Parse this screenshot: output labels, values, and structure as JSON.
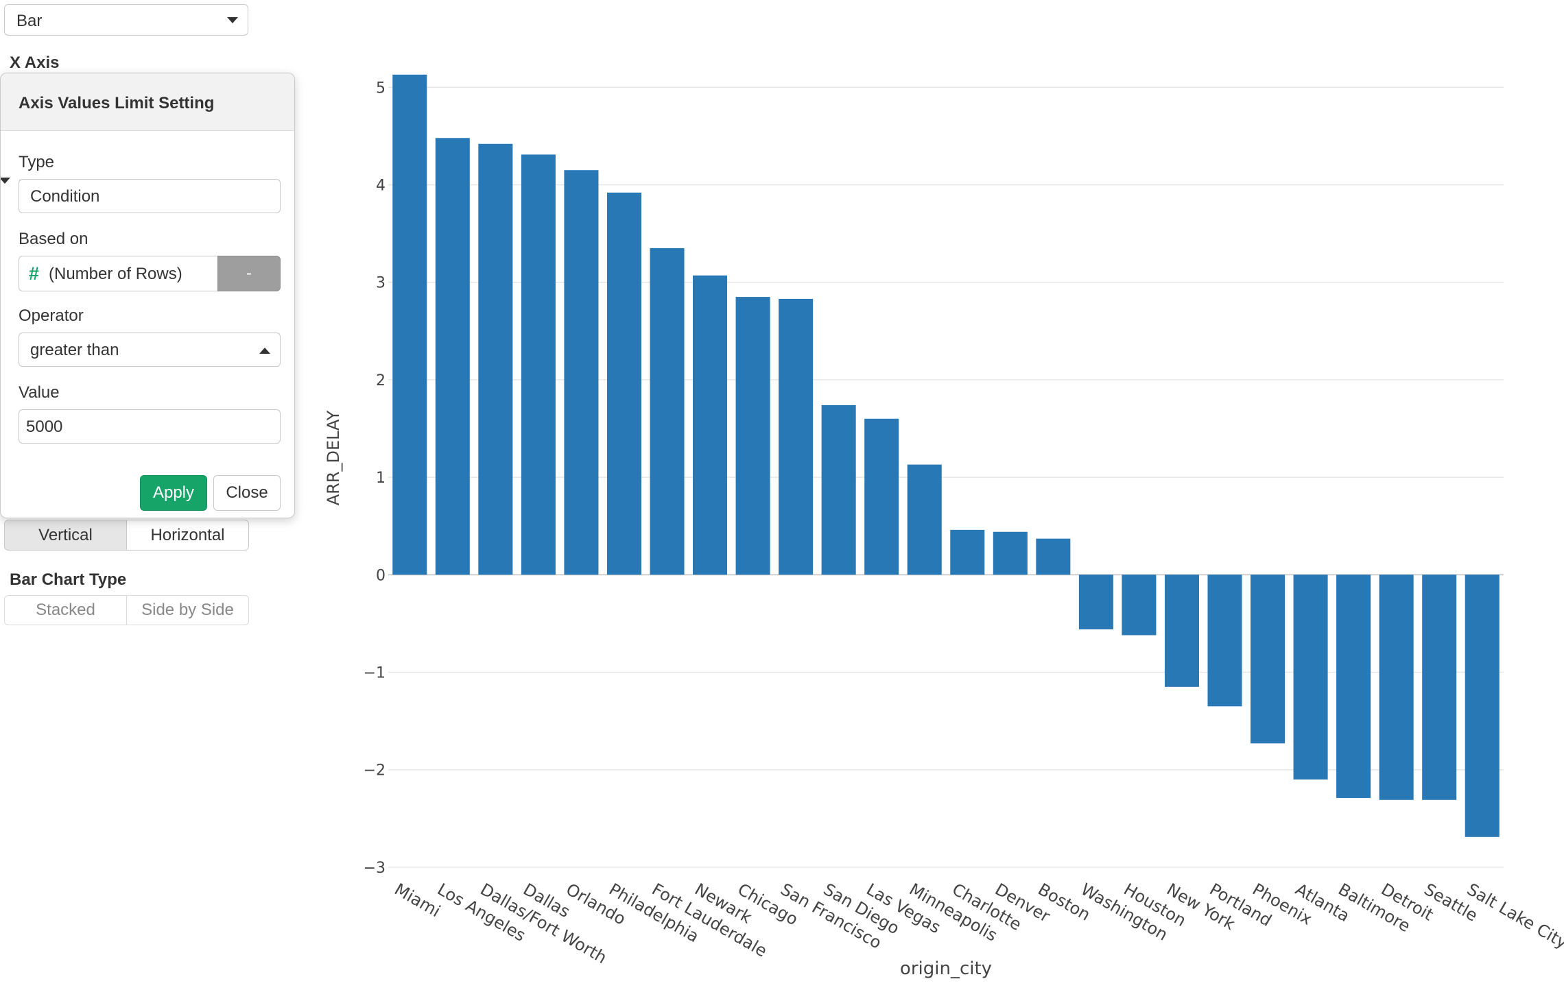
{
  "chart_type_select": {
    "value": "Bar"
  },
  "x_axis_label": "X Axis",
  "popover": {
    "title": "Axis Values Limit Setting",
    "type_label": "Type",
    "type_value": "Condition",
    "based_on_label": "Based on",
    "based_on_icon": "#",
    "based_on_value": "(Number of Rows)",
    "based_on_button": "-",
    "operator_label": "Operator",
    "operator_value": "greater than",
    "value_label": "Value",
    "value": "5000",
    "apply_label": "Apply",
    "close_label": "Close"
  },
  "orientation": {
    "vertical": "Vertical",
    "horizontal": "Horizontal",
    "selected": "Vertical"
  },
  "bar_chart_type": {
    "label": "Bar Chart Type",
    "stacked": "Stacked",
    "side_by_side": "Side by Side"
  },
  "colors": {
    "bar": "#2878b5",
    "apply_green": "#17a468",
    "hash_green": "#17a468",
    "grid": "#e6e6e6"
  },
  "chart_data": {
    "type": "bar",
    "xlabel": "origin_city",
    "ylabel": "ARR_DELAY",
    "ylim": [
      -3.05,
      5.15
    ],
    "yticks": [
      5,
      4,
      3,
      2,
      1,
      0,
      -1,
      -2,
      -3
    ],
    "ytick_labels": [
      "5",
      "4",
      "3",
      "2",
      "1",
      "0",
      "−1",
      "−2",
      "−3"
    ],
    "grid": true,
    "categories": [
      "Miami",
      "Los Angeles",
      "Dallas/Fort Worth",
      "Dallas",
      "Orlando",
      "Philadelphia",
      "Fort Lauderdale",
      "Newark",
      "Chicago",
      "San Francisco",
      "San Diego",
      "Las Vegas",
      "Minneapolis",
      "Charlotte",
      "Denver",
      "Boston",
      "Washington",
      "Houston",
      "New York",
      "Portland",
      "Phoenix",
      "Atlanta",
      "Baltimore",
      "Detroit",
      "Seattle",
      "Salt Lake City"
    ],
    "values": [
      5.13,
      4.48,
      4.42,
      4.31,
      4.15,
      3.92,
      3.35,
      3.07,
      2.85,
      2.83,
      1.74,
      1.6,
      1.13,
      0.46,
      0.44,
      0.37,
      -0.56,
      -0.62,
      -1.15,
      -1.35,
      -1.73,
      -2.1,
      -2.29,
      -2.31,
      -2.31,
      -2.69
    ]
  }
}
